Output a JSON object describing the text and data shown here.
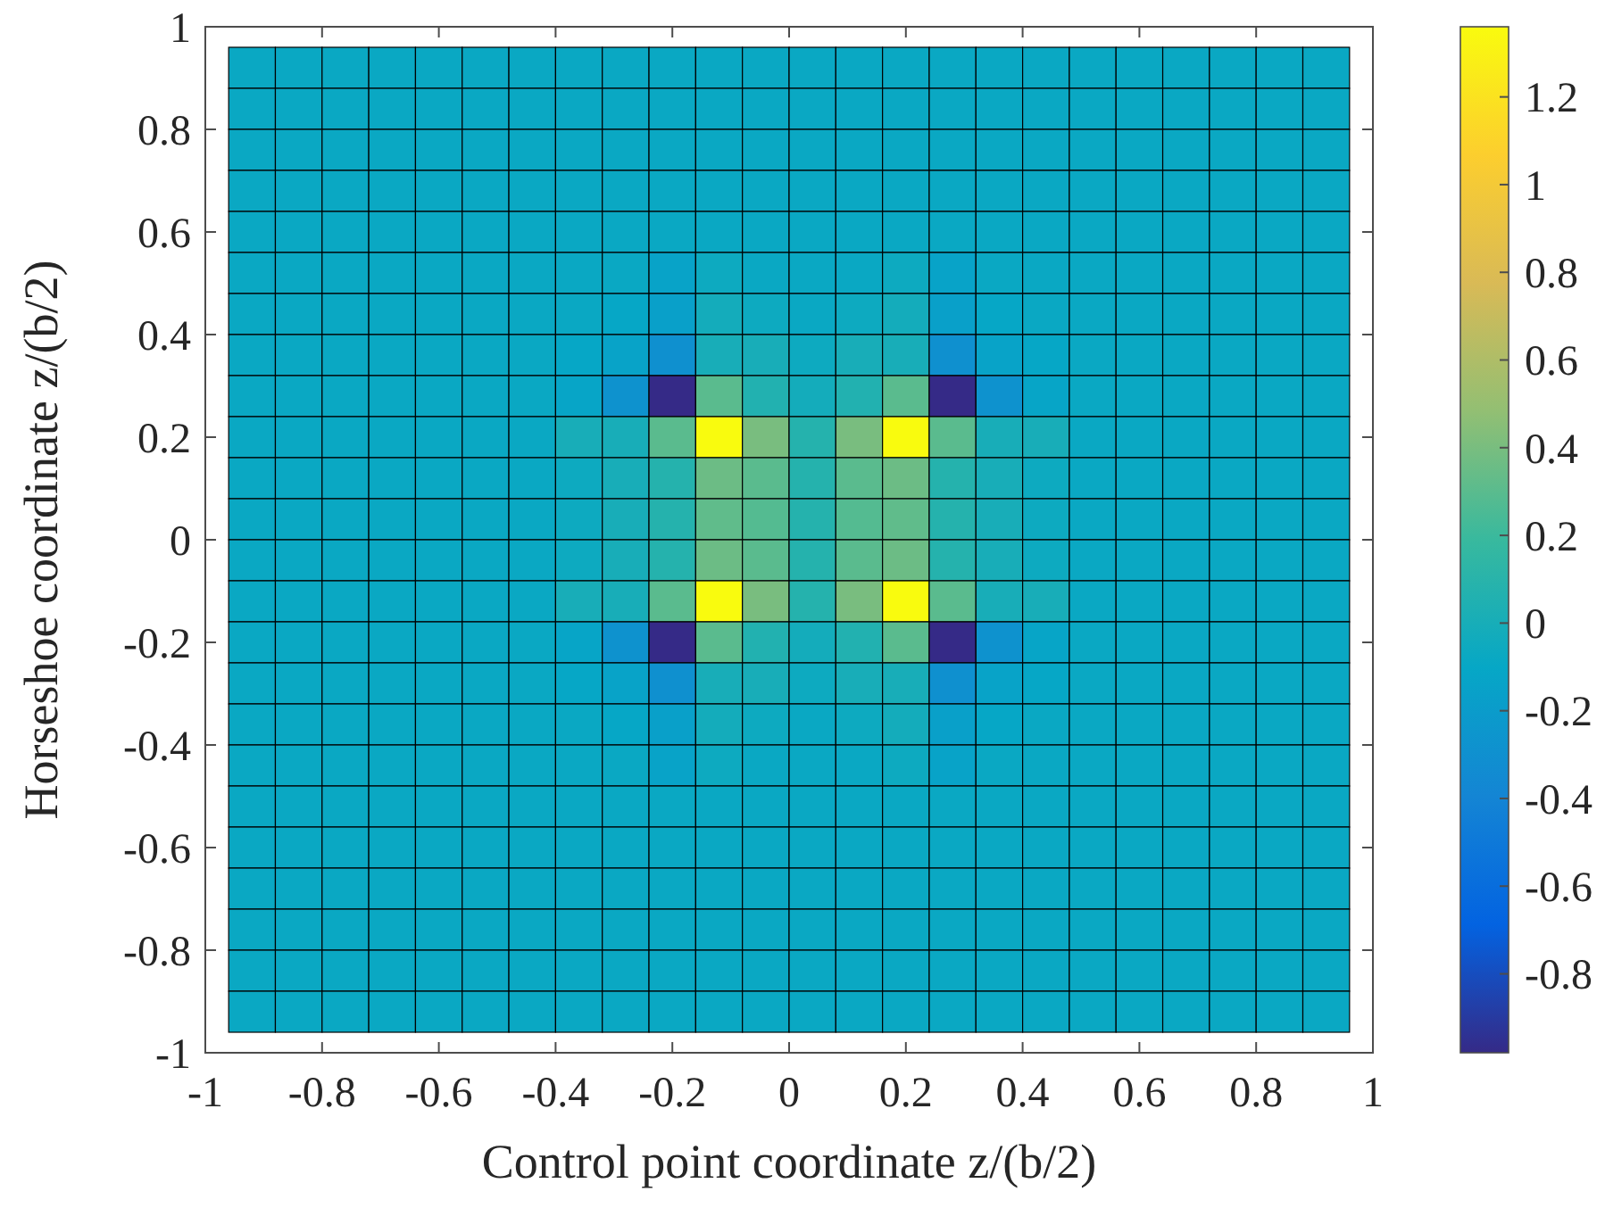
{
  "chart_data": {
    "type": "heatmap",
    "xlabel": "Control point coordinate z/(b/2)",
    "ylabel": "Horseshoe coordinate z/(b/2)",
    "x": [
      -0.92,
      -0.84,
      -0.76,
      -0.68,
      -0.6,
      -0.52,
      -0.44,
      -0.36,
      -0.28,
      -0.2,
      -0.12,
      -0.04,
      0.04,
      0.12,
      0.2,
      0.28,
      0.36,
      0.44,
      0.52,
      0.6,
      0.68,
      0.76,
      0.84,
      0.92
    ],
    "y": [
      0.92,
      0.84,
      0.76,
      0.68,
      0.6,
      0.52,
      0.44,
      0.36,
      0.28,
      0.2,
      0.12,
      0.04,
      -0.04,
      -0.12,
      -0.2,
      -0.28,
      -0.36,
      -0.44,
      -0.52,
      -0.6,
      -0.68,
      -0.76,
      -0.84,
      -0.92
    ],
    "cells": [
      [
        -0.08,
        -0.08,
        -0.08,
        -0.08,
        -0.08,
        -0.08,
        -0.08,
        -0.08,
        -0.08,
        -0.08,
        -0.08,
        -0.08,
        -0.08,
        -0.08,
        -0.08,
        -0.08,
        -0.08,
        -0.08,
        -0.08,
        -0.08,
        -0.08,
        -0.08,
        -0.08,
        -0.08
      ],
      [
        -0.08,
        -0.08,
        -0.08,
        -0.08,
        -0.08,
        -0.08,
        -0.08,
        -0.08,
        -0.08,
        -0.08,
        -0.08,
        -0.08,
        -0.08,
        -0.08,
        -0.08,
        -0.08,
        -0.08,
        -0.08,
        -0.08,
        -0.08,
        -0.08,
        -0.08,
        -0.08,
        -0.08
      ],
      [
        -0.08,
        -0.08,
        -0.08,
        -0.08,
        -0.08,
        -0.08,
        -0.08,
        -0.08,
        -0.08,
        -0.08,
        -0.08,
        -0.08,
        -0.08,
        -0.08,
        -0.08,
        -0.08,
        -0.08,
        -0.08,
        -0.08,
        -0.08,
        -0.08,
        -0.08,
        -0.08,
        -0.08
      ],
      [
        -0.08,
        -0.08,
        -0.08,
        -0.08,
        -0.08,
        -0.08,
        -0.08,
        -0.08,
        -0.08,
        -0.08,
        -0.08,
        -0.08,
        -0.08,
        -0.08,
        -0.08,
        -0.08,
        -0.08,
        -0.08,
        -0.08,
        -0.08,
        -0.08,
        -0.08,
        -0.08,
        -0.08
      ],
      [
        -0.08,
        -0.08,
        -0.08,
        -0.08,
        -0.08,
        -0.08,
        -0.08,
        -0.08,
        -0.08,
        -0.08,
        -0.08,
        -0.08,
        -0.08,
        -0.08,
        -0.08,
        -0.08,
        -0.08,
        -0.08,
        -0.08,
        -0.08,
        -0.08,
        -0.08,
        -0.08,
        -0.08
      ],
      [
        -0.08,
        -0.08,
        -0.08,
        -0.08,
        -0.08,
        -0.08,
        -0.08,
        -0.08,
        -0.08,
        -0.14,
        -0.06,
        -0.08,
        -0.08,
        -0.08,
        -0.06,
        -0.14,
        -0.08,
        -0.08,
        -0.08,
        -0.08,
        -0.08,
        -0.08,
        -0.08,
        -0.08
      ],
      [
        -0.08,
        -0.08,
        -0.08,
        -0.08,
        -0.08,
        -0.08,
        -0.08,
        -0.08,
        -0.1,
        -0.16,
        -0.02,
        -0.06,
        -0.08,
        -0.06,
        -0.02,
        -0.16,
        -0.1,
        -0.08,
        -0.08,
        -0.08,
        -0.08,
        -0.08,
        -0.08,
        -0.08
      ],
      [
        -0.08,
        -0.08,
        -0.08,
        -0.08,
        -0.08,
        -0.08,
        -0.08,
        -0.1,
        -0.14,
        -0.3,
        0.0,
        0.0,
        -0.06,
        0.0,
        0.0,
        -0.3,
        -0.14,
        -0.1,
        -0.08,
        -0.08,
        -0.08,
        -0.08,
        -0.08,
        -0.08
      ],
      [
        -0.08,
        -0.08,
        -0.08,
        -0.08,
        -0.08,
        -0.08,
        -0.08,
        -0.12,
        -0.28,
        -0.98,
        0.3,
        0.06,
        -0.02,
        0.06,
        0.3,
        -0.98,
        -0.28,
        -0.12,
        -0.08,
        -0.08,
        -0.08,
        -0.08,
        -0.08,
        -0.08
      ],
      [
        -0.08,
        -0.08,
        -0.08,
        -0.08,
        -0.08,
        -0.08,
        -0.08,
        0.0,
        0.0,
        0.3,
        1.36,
        0.4,
        0.08,
        0.4,
        1.36,
        0.3,
        0.0,
        0.0,
        -0.08,
        -0.08,
        -0.08,
        -0.08,
        -0.08,
        -0.08
      ],
      [
        -0.08,
        -0.08,
        -0.08,
        -0.08,
        -0.08,
        -0.08,
        -0.08,
        -0.06,
        0.0,
        0.08,
        0.36,
        0.3,
        0.08,
        0.3,
        0.36,
        0.08,
        0.0,
        -0.06,
        -0.08,
        -0.08,
        -0.08,
        -0.08,
        -0.08,
        -0.08
      ],
      [
        -0.08,
        -0.08,
        -0.08,
        -0.08,
        -0.08,
        -0.08,
        -0.08,
        -0.06,
        0.0,
        0.08,
        0.32,
        0.28,
        0.08,
        0.28,
        0.32,
        0.08,
        0.0,
        -0.06,
        -0.08,
        -0.08,
        -0.08,
        -0.08,
        -0.08,
        -0.08
      ],
      [
        -0.08,
        -0.08,
        -0.08,
        -0.08,
        -0.08,
        -0.08,
        -0.08,
        -0.06,
        0.0,
        0.08,
        0.36,
        0.3,
        0.08,
        0.3,
        0.36,
        0.08,
        0.0,
        -0.06,
        -0.08,
        -0.08,
        -0.08,
        -0.08,
        -0.08,
        -0.08
      ],
      [
        -0.08,
        -0.08,
        -0.08,
        -0.08,
        -0.08,
        -0.08,
        -0.08,
        0.0,
        0.0,
        0.3,
        1.36,
        0.4,
        0.08,
        0.4,
        1.36,
        0.3,
        0.0,
        0.0,
        -0.08,
        -0.08,
        -0.08,
        -0.08,
        -0.08,
        -0.08
      ],
      [
        -0.08,
        -0.08,
        -0.08,
        -0.08,
        -0.08,
        -0.08,
        -0.08,
        -0.12,
        -0.28,
        -0.98,
        0.3,
        0.06,
        -0.02,
        0.06,
        0.3,
        -0.98,
        -0.28,
        -0.12,
        -0.08,
        -0.08,
        -0.08,
        -0.08,
        -0.08,
        -0.08
      ],
      [
        -0.08,
        -0.08,
        -0.08,
        -0.08,
        -0.08,
        -0.08,
        -0.08,
        -0.1,
        -0.14,
        -0.3,
        0.0,
        0.0,
        -0.06,
        0.0,
        0.0,
        -0.3,
        -0.14,
        -0.1,
        -0.08,
        -0.08,
        -0.08,
        -0.08,
        -0.08,
        -0.08
      ],
      [
        -0.08,
        -0.08,
        -0.08,
        -0.08,
        -0.08,
        -0.08,
        -0.08,
        -0.08,
        -0.1,
        -0.16,
        -0.02,
        -0.06,
        -0.08,
        -0.06,
        -0.02,
        -0.16,
        -0.1,
        -0.08,
        -0.08,
        -0.08,
        -0.08,
        -0.08,
        -0.08,
        -0.08
      ],
      [
        -0.08,
        -0.08,
        -0.08,
        -0.08,
        -0.08,
        -0.08,
        -0.08,
        -0.08,
        -0.08,
        -0.14,
        -0.06,
        -0.08,
        -0.08,
        -0.08,
        -0.06,
        -0.14,
        -0.08,
        -0.08,
        -0.08,
        -0.08,
        -0.08,
        -0.08,
        -0.08,
        -0.08
      ],
      [
        -0.08,
        -0.08,
        -0.08,
        -0.08,
        -0.08,
        -0.08,
        -0.08,
        -0.08,
        -0.08,
        -0.08,
        -0.08,
        -0.08,
        -0.08,
        -0.08,
        -0.08,
        -0.08,
        -0.08,
        -0.08,
        -0.08,
        -0.08,
        -0.08,
        -0.08,
        -0.08,
        -0.08
      ],
      [
        -0.08,
        -0.08,
        -0.08,
        -0.08,
        -0.08,
        -0.08,
        -0.08,
        -0.08,
        -0.08,
        -0.08,
        -0.08,
        -0.08,
        -0.08,
        -0.08,
        -0.08,
        -0.08,
        -0.08,
        -0.08,
        -0.08,
        -0.08,
        -0.08,
        -0.08,
        -0.08,
        -0.08
      ],
      [
        -0.08,
        -0.08,
        -0.08,
        -0.08,
        -0.08,
        -0.08,
        -0.08,
        -0.08,
        -0.08,
        -0.08,
        -0.08,
        -0.08,
        -0.08,
        -0.08,
        -0.08,
        -0.08,
        -0.08,
        -0.08,
        -0.08,
        -0.08,
        -0.08,
        -0.08,
        -0.08,
        -0.08
      ],
      [
        -0.08,
        -0.08,
        -0.08,
        -0.08,
        -0.08,
        -0.08,
        -0.08,
        -0.08,
        -0.08,
        -0.08,
        -0.08,
        -0.08,
        -0.08,
        -0.08,
        -0.08,
        -0.08,
        -0.08,
        -0.08,
        -0.08,
        -0.08,
        -0.08,
        -0.08,
        -0.08,
        -0.08
      ],
      [
        -0.08,
        -0.08,
        -0.08,
        -0.08,
        -0.08,
        -0.08,
        -0.08,
        -0.08,
        -0.08,
        -0.08,
        -0.08,
        -0.08,
        -0.08,
        -0.08,
        -0.08,
        -0.08,
        -0.08,
        -0.08,
        -0.08,
        -0.08,
        -0.08,
        -0.08,
        -0.08,
        -0.08
      ],
      [
        -0.08,
        -0.08,
        -0.08,
        -0.08,
        -0.08,
        -0.08,
        -0.08,
        -0.08,
        -0.08,
        -0.08,
        -0.08,
        -0.08,
        -0.08,
        -0.08,
        -0.08,
        -0.08,
        -0.08,
        -0.08,
        -0.08,
        -0.08,
        -0.08,
        -0.08,
        -0.08,
        -0.08
      ]
    ],
    "xlim": [
      -1,
      1
    ],
    "xticks": [
      -1,
      -0.8,
      -0.6,
      -0.4,
      -0.2,
      0,
      0.2,
      0.4,
      0.6,
      0.8,
      1
    ],
    "ylim": [
      -1,
      1
    ],
    "yticks": [
      -1,
      -0.8,
      -0.6,
      -0.4,
      -0.2,
      0,
      0.2,
      0.4,
      0.6,
      0.8,
      1
    ],
    "clim": [
      -0.98,
      1.36
    ],
    "cticks": [
      -0.8,
      -0.6,
      -0.4,
      -0.2,
      0,
      0.2,
      0.4,
      0.6,
      0.8,
      1,
      1.2
    ]
  }
}
